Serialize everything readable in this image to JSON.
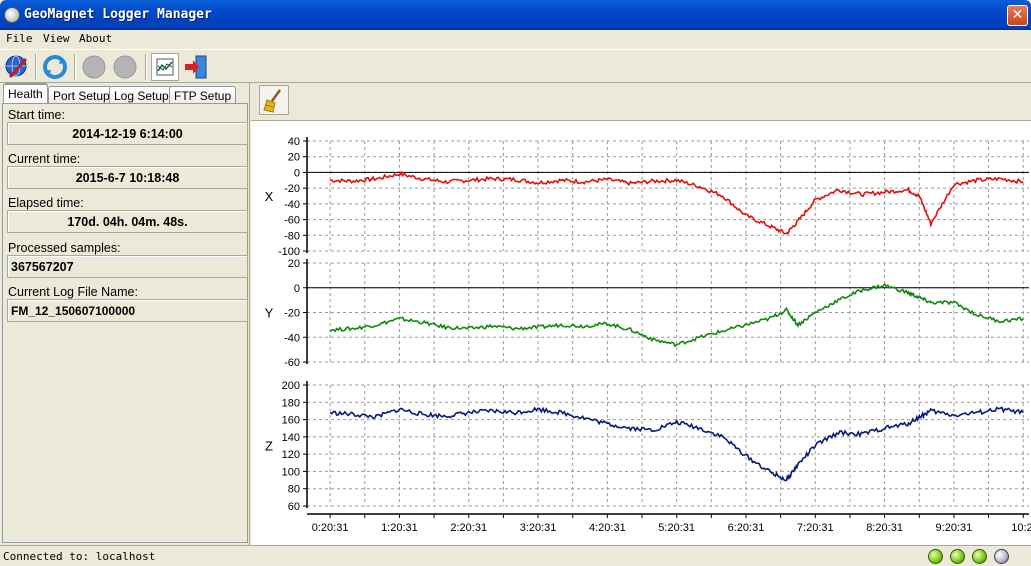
{
  "window": {
    "title": "GeoMagnet Logger Manager",
    "close_glyph": "✕"
  },
  "menu": {
    "file": "File",
    "view": "View",
    "about": "About"
  },
  "toolbar": {
    "icons": [
      "connect-icon",
      "refresh-icon",
      "disabled-record-icon",
      "disabled-stop-icon",
      "chart-view-icon",
      "exit-icon"
    ]
  },
  "tabs": [
    {
      "label": "Health",
      "active": true
    },
    {
      "label": "Port Setup"
    },
    {
      "label": "Log Setup"
    },
    {
      "label": "FTP Setup"
    }
  ],
  "health": {
    "start_label": "Start time:",
    "start_value": "2014-12-19 6:14:00",
    "current_label": "Current time:",
    "current_value": "2015-6-7 10:18:48",
    "elapsed_label": "Elapsed time:",
    "elapsed_value": "170d. 04h. 04m. 48s.",
    "samples_label": "Processed samples:",
    "samples_value": "367567207",
    "logfile_label": "Current Log File Name:",
    "logfile_value": "FM_12_150607100000"
  },
  "status": {
    "text": "Connected to: localhost",
    "leds": [
      "on",
      "on",
      "on",
      "off"
    ]
  },
  "colors": {
    "x": "#dd1111",
    "y": "#118811",
    "z": "#0a1a78"
  },
  "chart_data": [
    {
      "type": "line",
      "ylabel": "X",
      "ylim": [
        -100,
        40
      ],
      "yticks": [
        40,
        20,
        0,
        -20,
        -40,
        -60,
        -80,
        -100
      ],
      "zero_line": true,
      "grid": true,
      "x": [
        "0:20:31",
        "0:40:31",
        "1:00:31",
        "1:20:31",
        "1:40:31",
        "2:00:31",
        "2:20:31",
        "2:40:31",
        "3:00:31",
        "3:20:31",
        "3:40:31",
        "4:00:31",
        "4:20:31",
        "4:40:31",
        "5:00:31",
        "5:20:31",
        "5:40:31",
        "6:00:31",
        "6:20:31",
        "6:40:31",
        "6:55:31",
        "7:05:31",
        "7:20:31",
        "7:40:31",
        "8:00:31",
        "8:20:31",
        "8:40:31",
        "8:50:31",
        "9:00:31",
        "9:20:31",
        "9:40:31",
        "10:00:31",
        "10:20:31"
      ],
      "values": [
        -10,
        -11,
        -8,
        -2,
        -8,
        -12,
        -10,
        -8,
        -9,
        -13,
        -10,
        -12,
        -9,
        -14,
        -11,
        -10,
        -18,
        -30,
        -55,
        -68,
        -78,
        -62,
        -35,
        -22,
        -28,
        -25,
        -22,
        -30,
        -65,
        -15,
        -10,
        -8,
        -12
      ]
    },
    {
      "type": "line",
      "ylabel": "Y",
      "ylim": [
        -60,
        20
      ],
      "yticks": [
        20,
        0,
        -20,
        -40,
        -60
      ],
      "zero_line": true,
      "grid": true,
      "x": [
        "0:20:31",
        "0:40:31",
        "1:00:31",
        "1:20:31",
        "1:40:31",
        "2:00:31",
        "2:20:31",
        "2:40:31",
        "3:00:31",
        "3:20:31",
        "3:40:31",
        "4:00:31",
        "4:20:31",
        "4:40:31",
        "5:00:31",
        "5:20:31",
        "5:40:31",
        "6:00:31",
        "6:20:31",
        "6:40:31",
        "6:55:31",
        "7:05:31",
        "7:20:31",
        "7:40:31",
        "8:00:31",
        "8:20:31",
        "8:40:31",
        "8:50:31",
        "9:00:31",
        "9:20:31",
        "9:40:31",
        "10:00:31",
        "10:20:31"
      ],
      "values": [
        -34,
        -33,
        -30,
        -25,
        -28,
        -32,
        -33,
        -31,
        -33,
        -32,
        -30,
        -31,
        -29,
        -34,
        -42,
        -46,
        -40,
        -35,
        -30,
        -25,
        -18,
        -30,
        -20,
        -10,
        -2,
        2,
        -4,
        -8,
        -12,
        -12,
        -22,
        -27,
        -25
      ]
    },
    {
      "type": "line",
      "ylabel": "Z",
      "ylim": [
        60,
        200
      ],
      "yticks": [
        200,
        180,
        160,
        140,
        120,
        100,
        80,
        60
      ],
      "zero_line": false,
      "grid": true,
      "x": [
        "0:20:31",
        "0:40:31",
        "1:00:31",
        "1:20:31",
        "1:40:31",
        "2:00:31",
        "2:20:31",
        "2:40:31",
        "3:00:31",
        "3:20:31",
        "3:40:31",
        "4:00:31",
        "4:20:31",
        "4:40:31",
        "5:00:31",
        "5:20:31",
        "5:40:31",
        "6:00:31",
        "6:20:31",
        "6:40:31",
        "6:55:31",
        "7:05:31",
        "7:20:31",
        "7:40:31",
        "8:00:31",
        "8:20:31",
        "8:40:31",
        "8:50:31",
        "9:00:31",
        "9:20:31",
        "9:40:31",
        "10:00:31",
        "10:20:31"
      ],
      "values": [
        168,
        166,
        163,
        172,
        166,
        164,
        168,
        170,
        168,
        172,
        168,
        162,
        155,
        150,
        148,
        157,
        150,
        140,
        118,
        100,
        90,
        108,
        130,
        145,
        143,
        150,
        155,
        163,
        170,
        165,
        168,
        172,
        168
      ]
    }
  ],
  "x_axis": {
    "tick_labels": [
      "0:20:31",
      "1:20:31",
      "2:20:31",
      "3:20:31",
      "4:20:31",
      "5:20:31",
      "6:20:31",
      "7:20:31",
      "8:20:31",
      "9:20:31",
      "10:2"
    ]
  }
}
